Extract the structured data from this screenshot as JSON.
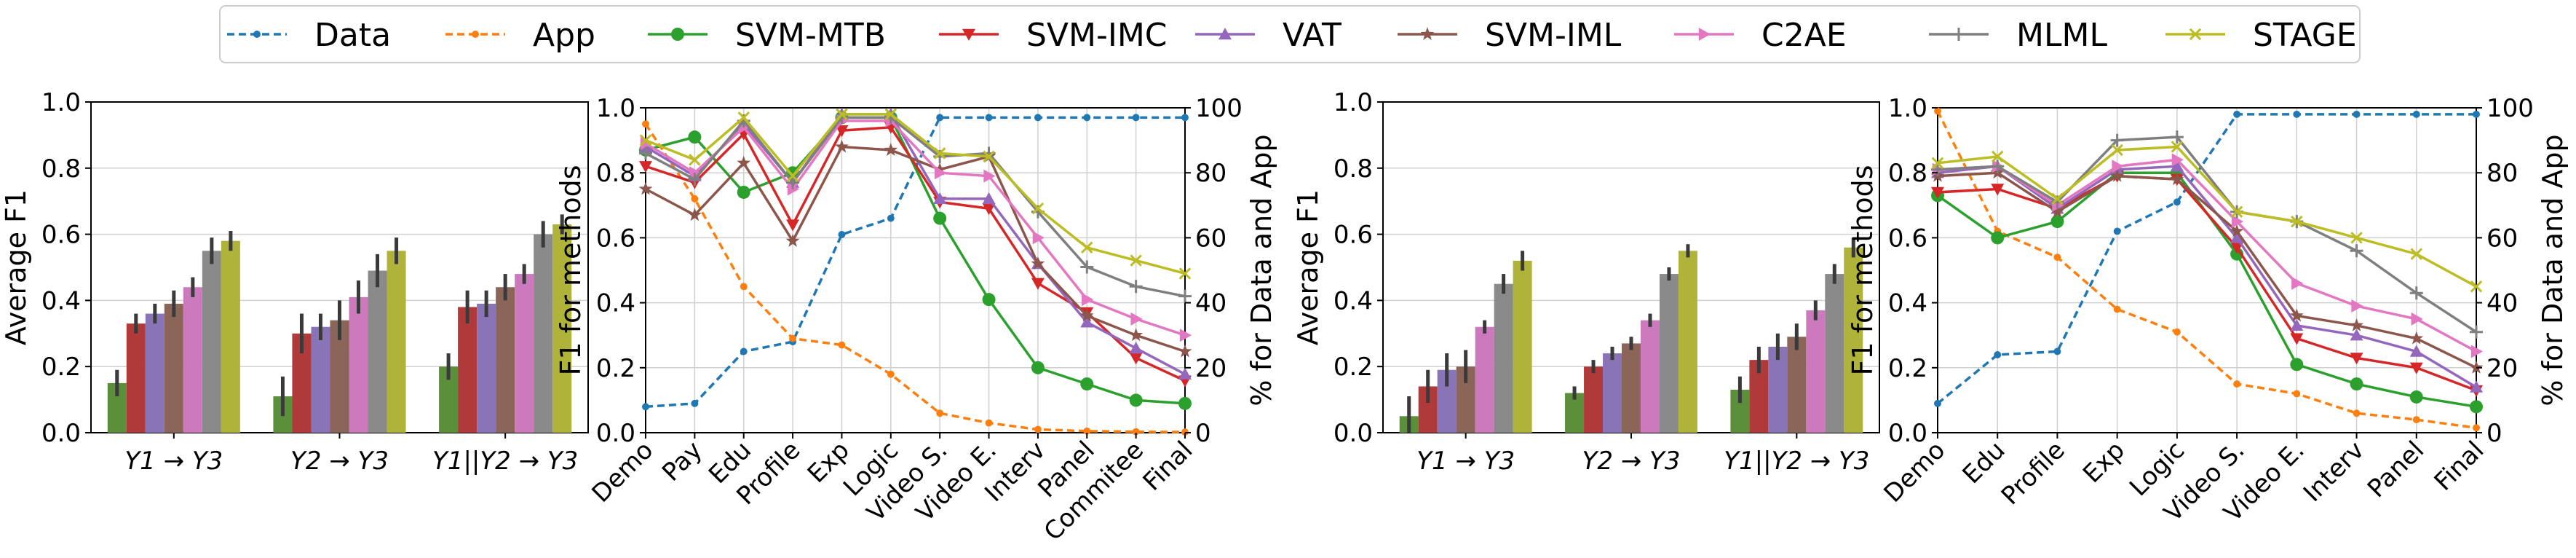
{
  "legend": {
    "entries": [
      {
        "name": "Data",
        "color": "#1f77b4",
        "dashed": true,
        "marker": "dot"
      },
      {
        "name": "App",
        "color": "#ff7f0e",
        "dashed": true,
        "marker": "dot"
      },
      {
        "name": "SVM-MTB",
        "color": "#2ca02c",
        "dashed": false,
        "marker": "circle"
      },
      {
        "name": "SVM-IMC",
        "color": "#d62728",
        "dashed": false,
        "marker": "triangle-down"
      },
      {
        "name": "VAT",
        "color": "#9467bd",
        "dashed": false,
        "marker": "triangle-up"
      },
      {
        "name": "SVM-IML",
        "color": "#8c564b",
        "dashed": false,
        "marker": "star"
      },
      {
        "name": "C2AE",
        "color": "#e377c2",
        "dashed": false,
        "marker": "triangle-right"
      },
      {
        "name": "MLML",
        "color": "#7f7f7f",
        "dashed": false,
        "marker": "plus"
      },
      {
        "name": "STAGE",
        "color": "#bcbd22",
        "dashed": false,
        "marker": "x"
      }
    ]
  },
  "chart_data": [
    {
      "type": "bar",
      "ylabel": "Average F1",
      "ylim": [
        0,
        1.0
      ],
      "yticks": [
        "0.0",
        "0.2",
        "0.4",
        "0.6",
        "0.8",
        "1.0"
      ],
      "categories": [
        "Y1 → Y3",
        "Y2 → Y3",
        "Y1||Y2 → Y3"
      ],
      "series": [
        {
          "name": "SVM-MTB",
          "color": "#5b8f3a",
          "values": [
            0.15,
            0.11,
            0.2
          ],
          "errors": [
            0.04,
            0.06,
            0.04
          ]
        },
        {
          "name": "SVM-IMC",
          "color": "#b03a3a",
          "values": [
            0.33,
            0.3,
            0.38
          ],
          "errors": [
            0.03,
            0.06,
            0.05
          ]
        },
        {
          "name": "VAT",
          "color": "#8a74b8",
          "values": [
            0.36,
            0.32,
            0.39
          ],
          "errors": [
            0.03,
            0.04,
            0.04
          ]
        },
        {
          "name": "SVM-IML",
          "color": "#8a6558",
          "values": [
            0.39,
            0.34,
            0.44
          ],
          "errors": [
            0.04,
            0.06,
            0.04
          ]
        },
        {
          "name": "C2AE",
          "color": "#cc79bd",
          "values": [
            0.44,
            0.41,
            0.48
          ],
          "errors": [
            0.03,
            0.05,
            0.03
          ]
        },
        {
          "name": "MLML",
          "color": "#8a8a8a",
          "values": [
            0.55,
            0.49,
            0.6
          ],
          "errors": [
            0.04,
            0.05,
            0.04
          ]
        },
        {
          "name": "STAGE",
          "color": "#b0b33a",
          "values": [
            0.58,
            0.55,
            0.63
          ],
          "errors": [
            0.03,
            0.04,
            0.03
          ]
        }
      ]
    },
    {
      "type": "line",
      "ylabel": "F1 for methods",
      "y2label": "% for Data and App",
      "ylim": [
        0,
        1.0
      ],
      "y2lim": [
        0,
        100
      ],
      "yticks": [
        "0.0",
        "0.2",
        "0.4",
        "0.6",
        "0.8",
        "1.0"
      ],
      "y2ticks": [
        "0",
        "20",
        "40",
        "60",
        "80",
        "100"
      ],
      "categories": [
        "Demo",
        "Pay",
        "Edu",
        "Profile",
        "Exp",
        "Logic",
        "Video S.",
        "Video E.",
        "Interv",
        "Panel",
        "Commitee",
        "Final"
      ],
      "series": [
        {
          "name": "Data",
          "axis": "right",
          "values": [
            8,
            9,
            25,
            28,
            61,
            66,
            97,
            97,
            97,
            97,
            97,
            97
          ]
        },
        {
          "name": "App",
          "axis": "right",
          "values": [
            95,
            72,
            45,
            29,
            27,
            18,
            6,
            3,
            1,
            0.5,
            0.3,
            0.2
          ]
        },
        {
          "name": "SVM-MTB",
          "axis": "left",
          "values": [
            0.87,
            0.91,
            0.74,
            0.8,
            0.97,
            0.97,
            0.66,
            0.41,
            0.2,
            0.15,
            0.1,
            0.09
          ]
        },
        {
          "name": "SVM-IMC",
          "axis": "left",
          "values": [
            0.82,
            0.77,
            0.92,
            0.64,
            0.93,
            0.94,
            0.71,
            0.69,
            0.46,
            0.37,
            0.23,
            0.16
          ]
        },
        {
          "name": "VAT",
          "axis": "left",
          "values": [
            0.88,
            0.79,
            0.95,
            0.77,
            0.98,
            0.98,
            0.72,
            0.72,
            0.52,
            0.34,
            0.26,
            0.18
          ]
        },
        {
          "name": "SVM-IML",
          "axis": "left",
          "values": [
            0.75,
            0.67,
            0.83,
            0.59,
            0.88,
            0.87,
            0.81,
            0.85,
            0.52,
            0.36,
            0.3,
            0.25
          ]
        },
        {
          "name": "C2AE",
          "axis": "left",
          "values": [
            0.89,
            0.8,
            0.94,
            0.75,
            0.96,
            0.96,
            0.8,
            0.79,
            0.6,
            0.41,
            0.35,
            0.3
          ]
        },
        {
          "name": "MLML",
          "axis": "left",
          "values": [
            0.86,
            0.78,
            0.96,
            0.77,
            0.97,
            0.97,
            0.85,
            0.86,
            0.68,
            0.51,
            0.45,
            0.42
          ]
        },
        {
          "name": "STAGE",
          "axis": "left",
          "values": [
            0.9,
            0.84,
            0.97,
            0.79,
            0.98,
            0.98,
            0.86,
            0.85,
            0.69,
            0.57,
            0.53,
            0.49
          ]
        }
      ]
    },
    {
      "type": "bar",
      "ylabel": "Average F1",
      "ylim": [
        0,
        1.0
      ],
      "yticks": [
        "0.0",
        "0.2",
        "0.4",
        "0.6",
        "0.8",
        "1.0"
      ],
      "categories": [
        "Y1 → Y3",
        "Y2 → Y3",
        "Y1||Y2 → Y3"
      ],
      "series": [
        {
          "name": "SVM-MTB",
          "color": "#5b8f3a",
          "values": [
            0.05,
            0.12,
            0.13
          ],
          "errors": [
            0.06,
            0.02,
            0.04
          ]
        },
        {
          "name": "SVM-IMC",
          "color": "#b03a3a",
          "values": [
            0.14,
            0.2,
            0.22
          ],
          "errors": [
            0.05,
            0.02,
            0.04
          ]
        },
        {
          "name": "VAT",
          "color": "#8a74b8",
          "values": [
            0.19,
            0.24,
            0.26
          ],
          "errors": [
            0.05,
            0.02,
            0.04
          ]
        },
        {
          "name": "SVM-IML",
          "color": "#8a6558",
          "values": [
            0.2,
            0.27,
            0.29
          ],
          "errors": [
            0.05,
            0.02,
            0.04
          ]
        },
        {
          "name": "C2AE",
          "color": "#cc79bd",
          "values": [
            0.32,
            0.34,
            0.37
          ],
          "errors": [
            0.02,
            0.02,
            0.03
          ]
        },
        {
          "name": "MLML",
          "color": "#8a8a8a",
          "values": [
            0.45,
            0.48,
            0.48
          ],
          "errors": [
            0.03,
            0.02,
            0.03
          ]
        },
        {
          "name": "STAGE",
          "color": "#b0b33a",
          "values": [
            0.52,
            0.55,
            0.56
          ],
          "errors": [
            0.03,
            0.02,
            0.03
          ]
        }
      ]
    },
    {
      "type": "line",
      "ylabel": "F1 for methods",
      "y2label": "% for Data and App",
      "ylim": [
        0,
        1.0
      ],
      "y2lim": [
        0,
        100
      ],
      "yticks": [
        "0.0",
        "0.2",
        "0.4",
        "0.6",
        "0.8",
        "1.0"
      ],
      "y2ticks": [
        "0",
        "20",
        "40",
        "60",
        "80",
        "100"
      ],
      "categories": [
        "Demo",
        "Edu",
        "Profile",
        "Exp",
        "Logic",
        "Video S.",
        "Video E.",
        "Interv",
        "Panel",
        "Final"
      ],
      "series": [
        {
          "name": "Data",
          "axis": "right",
          "values": [
            9,
            24,
            25,
            62,
            71,
            98,
            98,
            98,
            98,
            98
          ]
        },
        {
          "name": "App",
          "axis": "right",
          "values": [
            99,
            62,
            54,
            38,
            31,
            15,
            12,
            6,
            4,
            1.5
          ]
        },
        {
          "name": "SVM-MTB",
          "axis": "left",
          "values": [
            0.73,
            0.6,
            0.65,
            0.8,
            0.8,
            0.55,
            0.21,
            0.15,
            0.11,
            0.08
          ]
        },
        {
          "name": "SVM-IMC",
          "axis": "left",
          "values": [
            0.74,
            0.75,
            0.69,
            0.79,
            0.78,
            0.57,
            0.29,
            0.23,
            0.2,
            0.13
          ]
        },
        {
          "name": "VAT",
          "axis": "left",
          "values": [
            0.8,
            0.82,
            0.69,
            0.81,
            0.82,
            0.6,
            0.33,
            0.3,
            0.25,
            0.14
          ]
        },
        {
          "name": "SVM-IML",
          "axis": "left",
          "values": [
            0.79,
            0.8,
            0.68,
            0.79,
            0.78,
            0.62,
            0.36,
            0.33,
            0.29,
            0.2
          ]
        },
        {
          "name": "C2AE",
          "axis": "left",
          "values": [
            0.81,
            0.82,
            0.7,
            0.82,
            0.84,
            0.65,
            0.46,
            0.39,
            0.35,
            0.25
          ]
        },
        {
          "name": "MLML",
          "axis": "left",
          "values": [
            0.81,
            0.82,
            0.71,
            0.9,
            0.91,
            0.68,
            0.65,
            0.56,
            0.43,
            0.31
          ]
        },
        {
          "name": "STAGE",
          "axis": "left",
          "values": [
            0.83,
            0.85,
            0.72,
            0.87,
            0.88,
            0.68,
            0.65,
            0.6,
            0.55,
            0.45
          ]
        }
      ]
    }
  ]
}
